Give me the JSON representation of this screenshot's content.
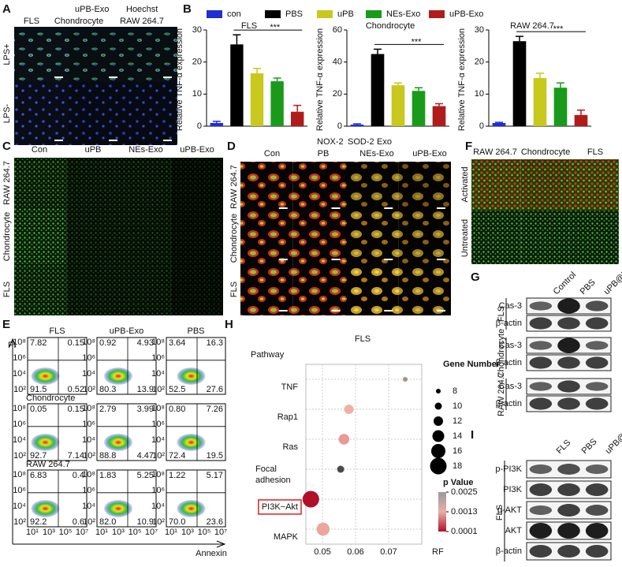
{
  "panel_labels": [
    "A",
    "B",
    "C",
    "D",
    "E",
    "F",
    "G",
    "H",
    "I"
  ],
  "panel_a": {
    "stains": [
      "uPB-Exo",
      "Hoechst"
    ],
    "columns": [
      "FLS",
      "Chondrocyte",
      "RAW 264.7"
    ],
    "rows": [
      "LPS+",
      "LPS-"
    ]
  },
  "bar_legend": {
    "names": [
      "con",
      "PBS",
      "uPB",
      "NEs-Exo",
      "uPB-Exo"
    ],
    "colors": [
      "#1f2fd0",
      "#000000",
      "#c8c81e",
      "#1a9a1a",
      "#b01c1c"
    ]
  },
  "chart_data": [
    {
      "type": "bar",
      "title": "FLS",
      "y_label": "Relative TNF-α expression",
      "annotation": "***",
      "values": [
        1,
        25.5,
        16.5,
        14,
        4.5
      ],
      "errors": [
        0.5,
        3,
        1.5,
        1,
        2
      ],
      "ylim": [
        0,
        30
      ],
      "yticks": [
        0,
        10,
        20,
        30
      ]
    },
    {
      "type": "bar",
      "title": "Chondrocyte",
      "y_label": "Relative TNF-α expression",
      "annotation": "***",
      "values": [
        1,
        45,
        25.5,
        22,
        12.5
      ],
      "errors": [
        0.5,
        3,
        1.5,
        2,
        1.5
      ],
      "ylim": [
        0,
        60
      ],
      "yticks": [
        0,
        20,
        40,
        60
      ]
    },
    {
      "type": "bar",
      "title": "RAW 264.7",
      "y_label": "Relative TNF-α expression",
      "annotation": "***",
      "values": [
        1,
        26.5,
        15,
        12,
        3.5
      ],
      "errors": [
        0.2,
        1.5,
        1.5,
        1.5,
        1.5
      ],
      "ylim": [
        0,
        30
      ],
      "yticks": [
        0,
        10,
        20,
        30
      ]
    },
    {
      "type": "scatter",
      "title": "FLS",
      "y_label": "Pathway",
      "x_label": "RF",
      "categories": [
        "TNF",
        "Rap1",
        "Ras",
        "Focal adhesion",
        "PI3K−Akt",
        "MAPK"
      ],
      "x": [
        0.075,
        0.058,
        0.0565,
        0.0555,
        0.0465,
        0.0502
      ],
      "sizes": [
        8,
        12,
        13,
        10,
        18,
        15
      ],
      "colors": [
        "#a89080",
        "#f0b0a8",
        "#e89a94",
        "#4a4a4a",
        "#b0102a",
        "#eca69c"
      ],
      "xlim": [
        0.045,
        0.08
      ],
      "xticks": [
        0.05,
        0.06,
        0.07
      ],
      "size_legend": {
        "title": "Gene Number",
        "values": [
          8,
          10,
          12,
          14,
          16,
          18
        ]
      },
      "color_legend": {
        "title": "p Value",
        "ticks": [
          0.0025,
          0.0013,
          0.0001
        ]
      }
    }
  ],
  "panel_c": {
    "columns": [
      "Con",
      "uPB",
      "NEs-Exo",
      "uPB-Exo"
    ],
    "rows": [
      "RAW 264.7",
      "Chondrocyte",
      "FLS"
    ]
  },
  "panel_d": {
    "stains": [
      "NOX-2",
      "SOD-2",
      "Exo"
    ],
    "columns": [
      "Con",
      "PB",
      "NEs-Exo",
      "uPB-Exo"
    ],
    "rows": [
      "RAW 264.7",
      "Chondrocyte",
      "FLS"
    ]
  },
  "panel_e": {
    "columns": [
      "FLS",
      "uPB-Exo",
      "PBS"
    ],
    "row_labels": [
      "Chondrocyte",
      "RAW 264.7"
    ],
    "y_label": "PI",
    "x_label": "Annexin",
    "yticks": [
      "10⁸",
      "10⁶",
      "10⁴",
      "10²"
    ],
    "xticks": [
      "10¹",
      "10³",
      "10⁵",
      "10⁷"
    ],
    "quadrants": [
      [
        [
          "7.82",
          "0.15",
          "91.5",
          "0.52"
        ],
        [
          "0.92",
          "4.93",
          "80.3",
          "13.9"
        ],
        [
          "3.64",
          "16.3",
          "52.5",
          "27.6"
        ]
      ],
      [
        [
          "0.05",
          "0.15",
          "92.7",
          "7.14"
        ],
        [
          "2.79",
          "3.99",
          "88.8",
          "4.47"
        ],
        [
          "0.80",
          "7.26",
          "72.4",
          "19.5"
        ]
      ],
      [
        [
          "6.83",
          "0.4",
          "92.2",
          "0.6"
        ],
        [
          "1.83",
          "5.25",
          "82.0",
          "10.9"
        ],
        [
          "1.22",
          "5.17",
          "70.0",
          "23.6"
        ]
      ]
    ]
  },
  "panel_f": {
    "columns": [
      "RAW 264.7",
      "Chondrocyte",
      "FLS"
    ],
    "rows": [
      "Activated",
      "Untreated"
    ]
  },
  "panel_g": {
    "columns": [
      "Control",
      "PBS",
      "uPB@Exo"
    ],
    "groups": [
      {
        "cell": "FLS",
        "bands": [
          "Cas-3",
          "β-actin"
        ]
      },
      {
        "cell": "Chondrocyte",
        "bands": [
          "Cas-3",
          "β-actin"
        ]
      },
      {
        "cell": "RAW 264.7",
        "bands": [
          "Cas-3",
          "β-actin"
        ]
      }
    ]
  },
  "panel_i": {
    "columns": [
      "FLS",
      "PBS",
      "uPB@Exo"
    ],
    "cell": "FLS",
    "bands": [
      "p-PI3K",
      "PI3K",
      "p-AKT",
      "AKT",
      "β-actin"
    ]
  }
}
